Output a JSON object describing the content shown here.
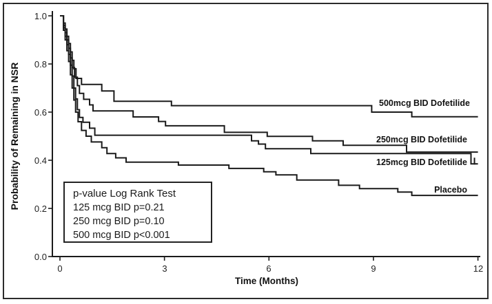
{
  "chart_data": {
    "type": "line",
    "subtype": "kaplan-meier-step",
    "title": "",
    "xlabel": "Time (Months)",
    "ylabel": "Probability of Remaining in NSR",
    "xlim": [
      0,
      12
    ],
    "ylim": [
      0.0,
      1.0
    ],
    "x_ticks": [
      0,
      3,
      6,
      9,
      12
    ],
    "y_ticks": [
      "0.0",
      "0.2",
      "0.4",
      "0.6",
      "0.8",
      "1.0"
    ],
    "grid": false,
    "line_color": "#1a1a1a",
    "legend_position": "labels-right-of-curves",
    "series": [
      {
        "name": "500mcg BID Dofetilide",
        "points": [
          [
            0,
            1.0
          ],
          [
            0.1,
            0.97
          ],
          [
            0.15,
            0.945
          ],
          [
            0.2,
            0.915
          ],
          [
            0.25,
            0.885
          ],
          [
            0.3,
            0.85
          ],
          [
            0.35,
            0.815
          ],
          [
            0.4,
            0.78
          ],
          [
            0.46,
            0.74
          ],
          [
            0.62,
            0.715
          ],
          [
            1.2,
            0.688
          ],
          [
            1.55,
            0.645
          ],
          [
            3.2,
            0.627
          ],
          [
            8.95,
            0.6
          ],
          [
            10.1,
            0.581
          ]
        ]
      },
      {
        "name": "250mcg BID Dofetilide",
        "points": [
          [
            0,
            1.0
          ],
          [
            0.1,
            0.96
          ],
          [
            0.15,
            0.93
          ],
          [
            0.2,
            0.9
          ],
          [
            0.25,
            0.865
          ],
          [
            0.3,
            0.825
          ],
          [
            0.35,
            0.785
          ],
          [
            0.42,
            0.745
          ],
          [
            0.5,
            0.71
          ],
          [
            0.56,
            0.678
          ],
          [
            0.68,
            0.653
          ],
          [
            0.85,
            0.63
          ],
          [
            0.95,
            0.605
          ],
          [
            2.1,
            0.58
          ],
          [
            2.83,
            0.561
          ],
          [
            3.03,
            0.543
          ],
          [
            4.72,
            0.516
          ],
          [
            5.95,
            0.499
          ],
          [
            7.25,
            0.481
          ],
          [
            8.13,
            0.462
          ],
          [
            9.95,
            0.434
          ]
        ]
      },
      {
        "name": "125mcg BID Dofetilide",
        "points": [
          [
            0,
            1.0
          ],
          [
            0.1,
            0.95
          ],
          [
            0.15,
            0.915
          ],
          [
            0.2,
            0.88
          ],
          [
            0.25,
            0.84
          ],
          [
            0.3,
            0.795
          ],
          [
            0.35,
            0.75
          ],
          [
            0.4,
            0.7
          ],
          [
            0.45,
            0.655
          ],
          [
            0.5,
            0.61
          ],
          [
            0.56,
            0.578
          ],
          [
            0.66,
            0.558
          ],
          [
            0.85,
            0.533
          ],
          [
            1.0,
            0.504
          ],
          [
            5.5,
            0.481
          ],
          [
            5.7,
            0.467
          ],
          [
            5.9,
            0.448
          ],
          [
            7.2,
            0.428
          ],
          [
            11.8,
            0.385
          ]
        ],
        "censor_ticks": [
          [
            11.9,
            0.385
          ]
        ]
      },
      {
        "name": "Placebo",
        "points": [
          [
            0,
            1.0
          ],
          [
            0.1,
            0.94
          ],
          [
            0.15,
            0.9
          ],
          [
            0.2,
            0.855
          ],
          [
            0.25,
            0.81
          ],
          [
            0.3,
            0.755
          ],
          [
            0.35,
            0.7
          ],
          [
            0.4,
            0.65
          ],
          [
            0.45,
            0.6
          ],
          [
            0.52,
            0.56
          ],
          [
            0.62,
            0.524
          ],
          [
            0.75,
            0.5
          ],
          [
            0.9,
            0.476
          ],
          [
            1.2,
            0.452
          ],
          [
            1.35,
            0.428
          ],
          [
            1.6,
            0.41
          ],
          [
            1.9,
            0.392
          ],
          [
            3.4,
            0.38
          ],
          [
            4.85,
            0.366
          ],
          [
            5.85,
            0.352
          ],
          [
            6.2,
            0.339
          ],
          [
            6.8,
            0.318
          ],
          [
            8.0,
            0.296
          ],
          [
            8.6,
            0.282
          ],
          [
            9.7,
            0.268
          ],
          [
            10.1,
            0.254
          ]
        ]
      }
    ],
    "annotation_box": {
      "title": "p-value Log Rank Test",
      "lines": [
        "125 mcg BID p=0.21",
        "250 mcg BID p=0.10",
        "500 mcg BID p<0.001"
      ]
    }
  }
}
